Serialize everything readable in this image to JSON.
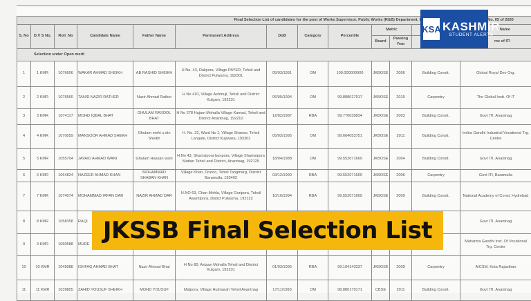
{
  "document": {
    "title": "Final Selection List of candidates for the  post of Works Supervisor, Public Works (R&B) Department, Divisio",
    "advt": "Advt No. 05 of 2020",
    "headers": {
      "sno": "S. No",
      "dvs": "D.V S No.",
      "roll": "Roll_No",
      "name": "Candidate Name",
      "father": "Father Name",
      "address": "Parmanent Address",
      "dob": "DoB",
      "category": "Category",
      "percentile": "Percentile",
      "matric": "Matric",
      "board": "Board",
      "year": "Passing Year",
      "trade_name": "e Name",
      "inst": "me of ITI"
    },
    "section": "Selection under Open merit",
    "rows": [
      {
        "sno": "1",
        "dvs": "1 KMR",
        "roll": "1076606",
        "name": "WAKAR AHMAD SHEIKH",
        "father": "AB RASHID SHEIKH",
        "address": "H No. 43, Dalipora, Village PAYER, Tehsil and District Pulwama, 192301",
        "dob": "05/03/1991",
        "cat": "OM",
        "pct": "100.000000000",
        "board": "JKBOSE",
        "year": "2006",
        "trade": "Building Constt.",
        "inst": "Global Royal Dev Org."
      },
      {
        "sno": "2",
        "dvs": "2 KMR",
        "roll": "1076560",
        "name": "TAHID NAZIR RATHER",
        "father": "Nazir Ahmad Rather",
        "address": "H No 410, Village Ashmuji, Tehsil and District Kulgam, 192231",
        "dob": "06/05/1994",
        "cat": "OM",
        "pct": "99.888017917",
        "board": "JKBOSE",
        "year": "2010",
        "trade": "Carpentry",
        "inst": "The Global Instt. Of IT"
      },
      {
        "sno": "3",
        "dvs": "3 KMR",
        "roll": "1074117",
        "name": "MOHD IQBAL BHAT",
        "father": "GHULAM RASOOL BHAT",
        "address": "H No 278 Hajam Mohalla Village Kamad, Tehsil and District Anantnag, 192210",
        "dob": "12/02/1987",
        "cat": "RBA",
        "pct": "99.776035834",
        "board": "JKBOSE",
        "year": "2003",
        "trade": "Building Constt.",
        "inst": "Govt ITI, Anantnag"
      },
      {
        "sno": "4",
        "dvs": "4 KMR",
        "roll": "1070059",
        "name": "MANSOOR AHMAD SHEKH",
        "father": "Ghulam mohi u din Sheikh",
        "address": "H. No. 22,  Ward No 1, Village Shanoo, Tehsil Langate, District Kupwara, 193302",
        "dob": "05/03/1995",
        "cat": "OM",
        "pct": "99.664053751",
        "board": "JKBOSE",
        "year": "2011",
        "trade": "Building Constt.",
        "inst": "Indira Gandhi Industrial Vocational Trg. Centre"
      },
      {
        "sno": "5",
        "dvs": "5 KMR",
        "roll": "1055704",
        "name": "JAVAID AHMAD WANI",
        "father": "Ghulam Hassan wani",
        "address": "H.No 43, Shamsipora bunpora, Village Shamsipora Mattan Tehsil and District, Anantnag, 192125",
        "dob": "18/04/1988",
        "cat": "OM",
        "pct": "99.552071669",
        "board": "JKBOSE",
        "year": "2004",
        "trade": "Building Constt.",
        "inst": "Govt ITI, Anantnag"
      },
      {
        "sno": "6",
        "dvs": "6 KMR",
        "roll": "1064824",
        "name": "NAZEER AHMAD KHAN",
        "father": "MOHAMMAD SHABAN KHAN",
        "address": "Village Khan, Druroo, Tehsil Tangmarg, District Baramulla, 193402",
        "dob": "03/12/1990",
        "cat": "RBA",
        "pct": "99.552071669",
        "board": "JKBOSE",
        "year": "2006",
        "trade": "Carpentry",
        "inst": "Govt ITI, Baramulla"
      },
      {
        "sno": "7",
        "dvs": "7 KMR",
        "roll": "1074074",
        "name": "MOHAMMAD IRFAN DAR",
        "father": "NAZIR AHMAD DAR",
        "address": "H.NO 63, Chan Mohla, Village Goripora, Tehsil Awantipora, Distict  Pulwama, 192122",
        "dob": "10/10/1994",
        "cat": "RBA",
        "pct": "99.552071669",
        "board": "JKBOSE",
        "year": "2009",
        "trade": "Building Constt.",
        "inst": "National Academy of Const, Hydrebad"
      },
      {
        "sno": "8",
        "dvs": "8 KMR",
        "roll": "1058358",
        "name": "RAQI",
        "father": "",
        "address": "",
        "dob": "",
        "cat": "",
        "pct": "",
        "board": "",
        "year": "",
        "trade": "tt.",
        "inst": "Govt ITI, Anantnag"
      },
      {
        "sno": "9",
        "dvs": "9 KMR",
        "roll": "1060588",
        "name": "MUDE",
        "father": "",
        "address": "",
        "dob": "",
        "cat": "",
        "pct": "",
        "board": "",
        "year": "",
        "trade": "tt.",
        "inst": "Mahatma Gandhi Inst. Of Vocational Trg. Center"
      },
      {
        "sno": "10",
        "dvs": "10 KMR",
        "roll": "1045088",
        "name": "ISHFAQ AHMAD BHAT",
        "father": "Nazir Ahmad Bhat",
        "address": "H No 80, Astaan Mohalla  Tehsil and District Kulgam, 192231",
        "dob": "01/03/1995",
        "cat": "RBA",
        "pct": "99.104143337",
        "board": "JKBOSE",
        "year": "2009",
        "trade": "Carpentry",
        "inst": "AICSM, Kota Rajasthan"
      },
      {
        "sno": "11",
        "dvs": "11 KMR",
        "roll": "1039805",
        "name": "ZAHID YOUSUF SHEIKH",
        "father": "MOHD YOUSUF",
        "address": "Malpora, Village Hutmarah Tehsil Anantnag",
        "dob": "17/11/1993",
        "cat": "OM",
        "pct": "98.880179171",
        "board": "CBSE",
        "year": "2011",
        "trade": "Building Constt.",
        "inst": "Govt ITI, Anantnag"
      }
    ]
  },
  "logo": {
    "badge": "KSA",
    "name": "KASHMIR",
    "tagline": "STUDENT ALERTS",
    "color": "#1b4fa3"
  },
  "banner": {
    "text": "JKSSB Final Selection List",
    "color": "#f6b70c"
  }
}
